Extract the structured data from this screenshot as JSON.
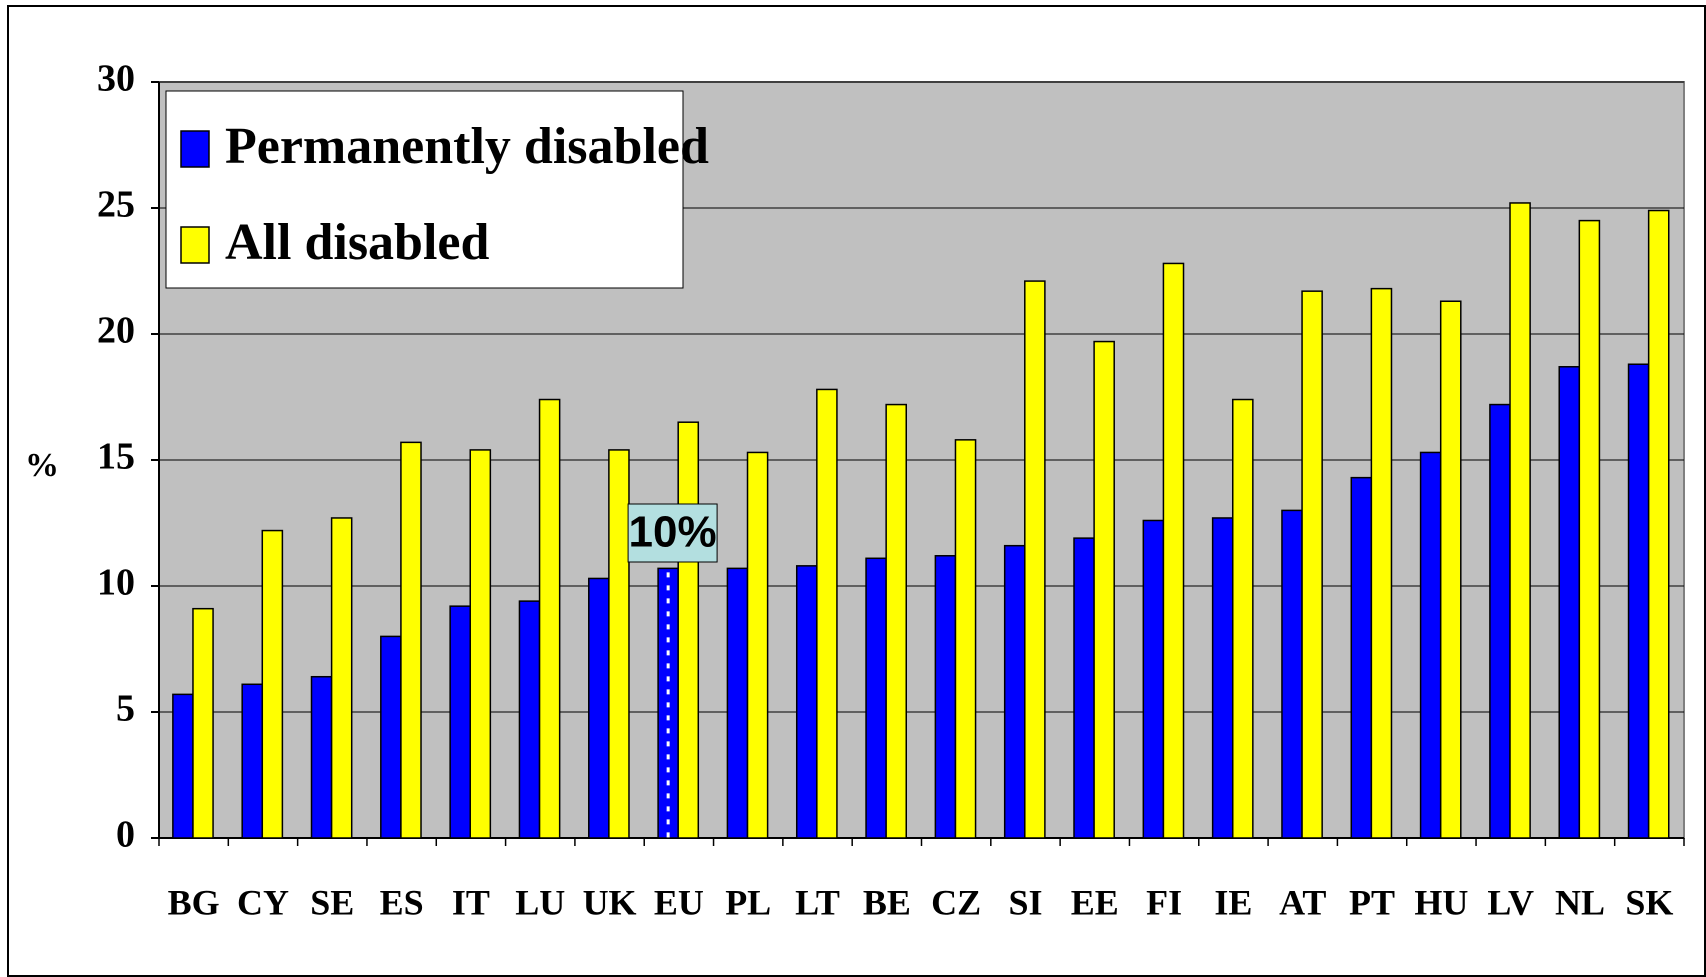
{
  "chart_data": {
    "type": "bar",
    "y_label": "%",
    "annotation": "10%",
    "categories": [
      "BG",
      "CY",
      "SE",
      "ES",
      "IT",
      "LU",
      "UK",
      "EU",
      "PL",
      "LT",
      "BE",
      "CZ",
      "SI",
      "EE",
      "FI",
      "IE",
      "AT",
      "PT",
      "HU",
      "LV",
      "NL",
      "SK"
    ],
    "series": [
      {
        "name": "Permanently disabled",
        "color": "#0000ff",
        "values": [
          5.7,
          6.1,
          6.4,
          8.0,
          9.2,
          9.4,
          10.3,
          10.7,
          10.7,
          10.8,
          11.1,
          11.2,
          11.6,
          11.9,
          12.6,
          12.7,
          13.0,
          14.3,
          15.3,
          17.2,
          18.7,
          18.8
        ]
      },
      {
        "name": "All disabled",
        "color": "#ffff00",
        "values": [
          9.1,
          12.2,
          12.7,
          15.7,
          15.4,
          17.4,
          15.4,
          16.5,
          15.3,
          17.8,
          17.2,
          15.8,
          22.1,
          19.7,
          22.8,
          17.4,
          21.7,
          21.8,
          21.3,
          25.2,
          24.5,
          24.9
        ]
      }
    ],
    "ylim": [
      0,
      30
    ],
    "yticks": [
      0,
      5,
      10,
      15,
      20,
      25,
      30
    ],
    "grid": true,
    "legend": "top-left"
  }
}
